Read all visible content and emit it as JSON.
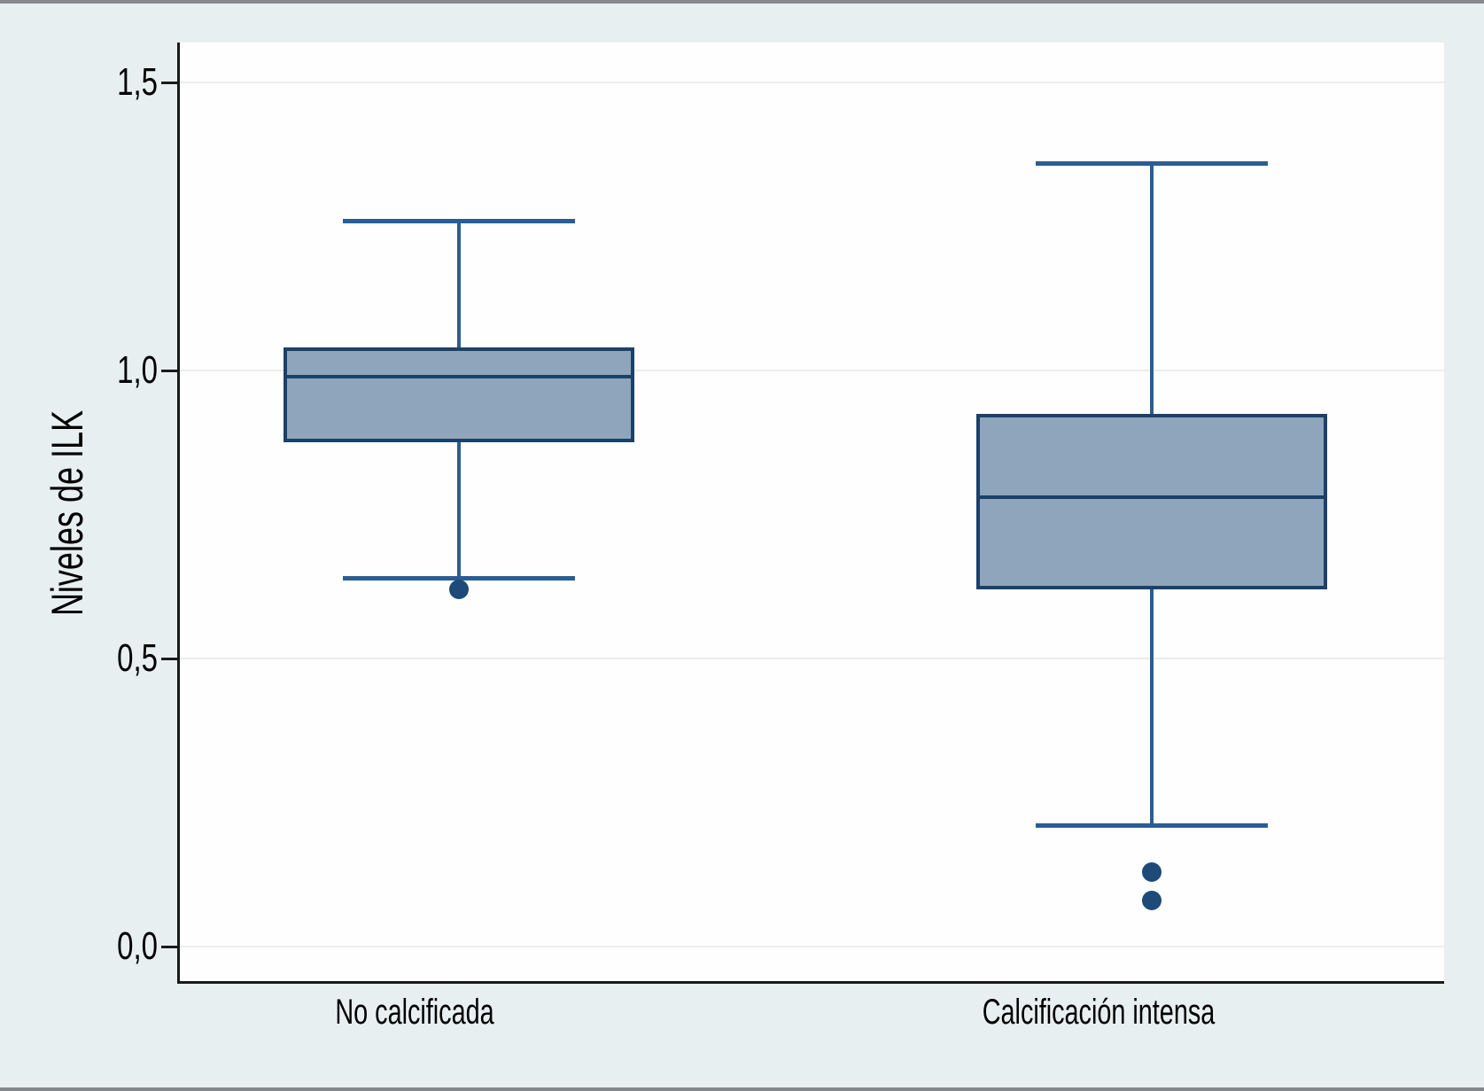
{
  "figure": {
    "background": "#e8eff1",
    "edge_border_color": "#85898d"
  },
  "chart_data": {
    "type": "boxplot",
    "title": "",
    "xlabel": "",
    "ylabel": "Niveles de ILK",
    "categories": [
      "No calcificada",
      "Calcificación intensa"
    ],
    "y_axis": {
      "range": [
        -0.065,
        1.57
      ],
      "grid": true,
      "decimal_style": "comma",
      "ticks": [
        {
          "label": "0,0",
          "value": 0.0
        },
        {
          "label": "0,5",
          "value": 0.5
        },
        {
          "label": "1,0",
          "value": 1.0
        },
        {
          "label": "1,5",
          "value": 1.5
        }
      ]
    },
    "series": [
      {
        "category": "No calcificada",
        "whisker_low": 0.64,
        "q1": 0.875,
        "median": 0.99,
        "q3": 1.04,
        "whisker_high": 1.26,
        "outliers": [
          0.62
        ]
      },
      {
        "category": "Calcificación intensa",
        "whisker_low": 0.21,
        "q1": 0.62,
        "median": 0.78,
        "q3": 0.925,
        "whisker_high": 1.36,
        "outliers": [
          0.13,
          0.08
        ]
      }
    ],
    "legend": null,
    "style": {
      "box_fill": "#8fa5bb",
      "box_border": "#1c4168",
      "median_color": "#1c4168",
      "whisker_color": "#2b5d92",
      "outlier_color": "#1d4a78",
      "axis_color": "#1a1a1a",
      "grid_color": "#ebedeb",
      "plot_background": "#fdfefd",
      "text_color": "#000000"
    }
  }
}
